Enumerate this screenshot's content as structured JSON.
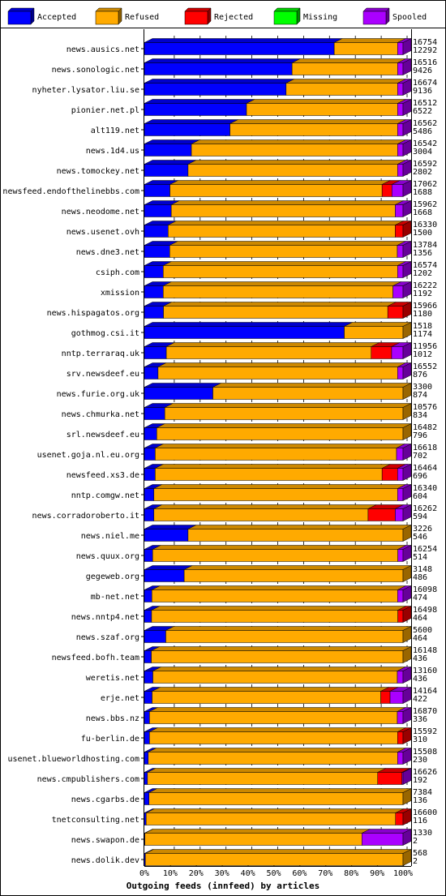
{
  "chart_data": {
    "type": "bar",
    "stacked": true,
    "orientation": "horizontal",
    "percent_scale": true,
    "title": "Outgoing feeds (innfeed) by articles",
    "xlim": [
      0,
      100
    ],
    "x_ticks": [
      "0%",
      "10%",
      "20%",
      "30%",
      "40%",
      "50%",
      "60%",
      "70%",
      "80%",
      "90%",
      "100%"
    ],
    "legend_position": "top",
    "series": [
      {
        "name": "Accepted",
        "color": "#0000ff"
      },
      {
        "name": "Refused",
        "color": "#ffaa00"
      },
      {
        "name": "Rejected",
        "color": "#ff0000"
      },
      {
        "name": "Missing",
        "color": "#00ff00"
      },
      {
        "name": "Spooled",
        "color": "#aa00ff"
      }
    ],
    "rows": [
      {
        "site": "news.ausics.net",
        "total": "16754",
        "accepted": "12292",
        "seg": [
          73.4,
          24.5,
          0,
          0,
          2.1
        ]
      },
      {
        "site": "news.sonologic.net",
        "total": "16516",
        "accepted": "9426",
        "seg": [
          57.1,
          40.8,
          0,
          0,
          2.1
        ]
      },
      {
        "site": "nyheter.lysator.liu.se",
        "total": "16674",
        "accepted": "9136",
        "seg": [
          54.8,
          43.1,
          0,
          0,
          2.1
        ]
      },
      {
        "site": "pionier.net.pl",
        "total": "16512",
        "accepted": "6522",
        "seg": [
          39.5,
          58.4,
          0,
          0,
          2.1
        ]
      },
      {
        "site": "alt119.net",
        "total": "16562",
        "accepted": "5486",
        "seg": [
          33.1,
          64.8,
          0,
          0,
          2.1
        ]
      },
      {
        "site": "news.1d4.us",
        "total": "16542",
        "accepted": "3004",
        "seg": [
          18.2,
          79.7,
          0,
          0,
          2.1
        ]
      },
      {
        "site": "news.tomockey.net",
        "total": "16592",
        "accepted": "2802",
        "seg": [
          16.9,
          81.0,
          0,
          0,
          2.1
        ]
      },
      {
        "site": "newsfeed.endofthelinebbs.com",
        "total": "17062",
        "accepted": "1688",
        "seg": [
          9.9,
          82.0,
          3.8,
          0,
          4.3
        ]
      },
      {
        "site": "news.neodome.net",
        "total": "15962",
        "accepted": "1668",
        "seg": [
          10.4,
          86.6,
          0,
          0,
          3.0
        ]
      },
      {
        "site": "news.usenet.ovh",
        "total": "16330",
        "accepted": "1500",
        "seg": [
          9.2,
          87.8,
          3.0,
          0,
          0
        ]
      },
      {
        "site": "news.dne3.net",
        "total": "13784",
        "accepted": "1356",
        "seg": [
          9.8,
          88.0,
          0,
          0,
          2.2
        ]
      },
      {
        "site": "csiph.com",
        "total": "16574",
        "accepted": "1202",
        "seg": [
          7.3,
          90.6,
          0,
          0,
          2.1
        ]
      },
      {
        "site": "xmission",
        "total": "16222",
        "accepted": "1192",
        "seg": [
          7.3,
          88.8,
          0,
          0,
          3.9
        ]
      },
      {
        "site": "news.hispagatos.org",
        "total": "15966",
        "accepted": "1180",
        "seg": [
          7.4,
          86.7,
          5.9,
          0,
          0
        ]
      },
      {
        "site": "gothmog.csi.it",
        "total": "1518",
        "accepted": "1174",
        "seg": [
          77.3,
          22.7,
          0,
          0,
          0
        ]
      },
      {
        "site": "nntp.terraraq.uk",
        "total": "11956",
        "accepted": "1012",
        "seg": [
          8.5,
          79.2,
          7.9,
          0,
          4.4
        ]
      },
      {
        "site": "srv.newsdeef.eu",
        "total": "16552",
        "accepted": "876",
        "seg": [
          5.3,
          92.6,
          0,
          0,
          2.1
        ]
      },
      {
        "site": "news.furie.org.uk",
        "total": "3300",
        "accepted": "874",
        "seg": [
          26.5,
          73.5,
          0,
          0,
          0
        ]
      },
      {
        "site": "news.chmurka.net",
        "total": "10576",
        "accepted": "834",
        "seg": [
          7.9,
          92.1,
          0,
          0,
          0
        ]
      },
      {
        "site": "srl.newsdeef.eu",
        "total": "16482",
        "accepted": "796",
        "seg": [
          4.8,
          95.2,
          0,
          0,
          0
        ]
      },
      {
        "site": "usenet.goja.nl.eu.org",
        "total": "16618",
        "accepted": "702",
        "seg": [
          4.2,
          93.3,
          0,
          0,
          2.5
        ]
      },
      {
        "site": "newsfeed.xs3.de",
        "total": "16464",
        "accepted": "696",
        "seg": [
          4.2,
          87.7,
          6.0,
          0,
          2.1
        ]
      },
      {
        "site": "nntp.comgw.net",
        "total": "16340",
        "accepted": "604",
        "seg": [
          3.7,
          94.2,
          0,
          0,
          2.1
        ]
      },
      {
        "site": "news.corradoroberto.it",
        "total": "16262",
        "accepted": "594",
        "seg": [
          3.7,
          82.8,
          10.5,
          0,
          3.0
        ]
      },
      {
        "site": "news.niel.me",
        "total": "3226",
        "accepted": "546",
        "seg": [
          16.9,
          83.1,
          0,
          0,
          0
        ]
      },
      {
        "site": "news.quux.org",
        "total": "16254",
        "accepted": "514",
        "seg": [
          3.2,
          94.8,
          0,
          0,
          2.0
        ]
      },
      {
        "site": "gegeweb.org",
        "total": "3148",
        "accepted": "486",
        "seg": [
          15.4,
          84.6,
          0,
          0,
          0
        ]
      },
      {
        "site": "mb-net.net",
        "total": "16098",
        "accepted": "474",
        "seg": [
          2.9,
          95.0,
          0,
          0,
          2.1
        ]
      },
      {
        "site": "news.nntp4.net",
        "total": "16498",
        "accepted": "464",
        "seg": [
          2.8,
          95.2,
          2.0,
          0,
          0
        ]
      },
      {
        "site": "news.szaf.org",
        "total": "5600",
        "accepted": "464",
        "seg": [
          8.3,
          91.7,
          0,
          0,
          0
        ]
      },
      {
        "site": "newsfeed.bofh.team",
        "total": "16148",
        "accepted": "436",
        "seg": [
          2.7,
          97.3,
          0,
          0,
          0
        ]
      },
      {
        "site": "weretis.net",
        "total": "13160",
        "accepted": "436",
        "seg": [
          3.3,
          94.5,
          0,
          0,
          2.2
        ]
      },
      {
        "site": "erje.net",
        "total": "14164",
        "accepted": "422",
        "seg": [
          3.0,
          88.4,
          3.6,
          0,
          5.0
        ]
      },
      {
        "site": "news.bbs.nz",
        "total": "16870",
        "accepted": "336",
        "seg": [
          2.0,
          95.8,
          0,
          0,
          2.2
        ]
      },
      {
        "site": "fu-berlin.de",
        "total": "15592",
        "accepted": "310",
        "seg": [
          2.0,
          95.9,
          2.1,
          0,
          0
        ]
      },
      {
        "site": "usenet.blueworldhosting.com",
        "total": "15508",
        "accepted": "230",
        "seg": [
          1.5,
          96.4,
          0,
          0,
          2.1
        ]
      },
      {
        "site": "news.cmpublishers.com",
        "total": "16626",
        "accepted": "192",
        "seg": [
          1.2,
          89.0,
          9.4,
          0,
          0.4
        ]
      },
      {
        "site": "news.cgarbs.de",
        "total": "7384",
        "accepted": "136",
        "seg": [
          1.8,
          98.2,
          0,
          0,
          0
        ]
      },
      {
        "site": "tnetconsulting.net",
        "total": "16600",
        "accepted": "116",
        "seg": [
          0.7,
          96.4,
          2.9,
          0,
          0
        ]
      },
      {
        "site": "news.swapon.de",
        "total": "1330",
        "accepted": "2",
        "seg": [
          0.2,
          83.9,
          0,
          0,
          15.9
        ]
      },
      {
        "site": "news.dolik.dev",
        "total": "568",
        "accepted": "2",
        "seg": [
          0.4,
          99.6,
          0,
          0,
          0
        ]
      }
    ]
  }
}
